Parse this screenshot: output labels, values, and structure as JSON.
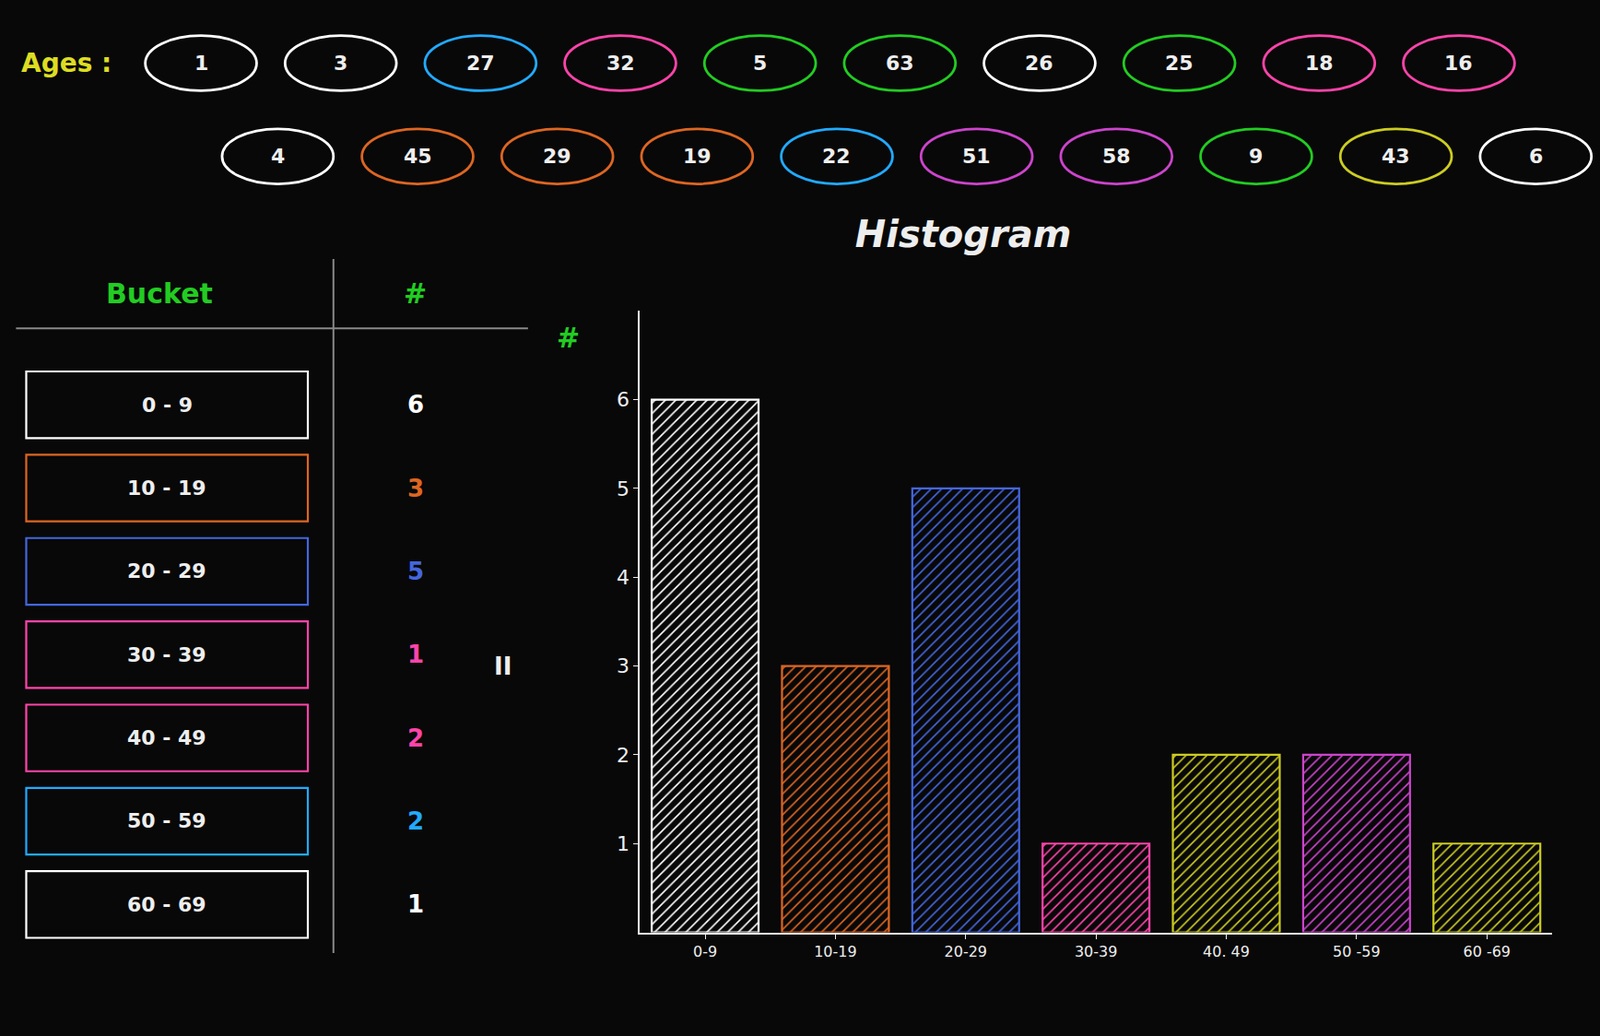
{
  "chart_data": {
    "type": "bar",
    "title": "Histogram",
    "categories": [
      "0-9",
      "10-19",
      "20-29",
      "30-39",
      "40. 49",
      "50 -59",
      "60 -69"
    ],
    "values": [
      6,
      3,
      5,
      1,
      2,
      2,
      1
    ],
    "colors": [
      "#ffffff",
      "#dd6622",
      "#4466dd",
      "#ff44aa",
      "#cccc22",
      "#cc44cc",
      "#cccc22"
    ],
    "ylim": [
      0,
      7
    ],
    "yticks": [
      1,
      2,
      3,
      4,
      5,
      6
    ],
    "annotations": [
      [
        {
          "text": "Ages :",
          "color": "#dddd22"
        }
      ],
      [
        {
          "text": "1",
          "color": "#ffffff"
        },
        {
          "text": "3",
          "color": "#ffffff"
        },
        {
          "text": "27",
          "color": "#22aaff"
        },
        {
          "text": "32",
          "color": "#ff44aa"
        },
        {
          "text": "5",
          "color": "#22cc22"
        },
        {
          "text": "63",
          "color": "#22cc22"
        },
        {
          "text": "26",
          "color": "#ffffff"
        },
        {
          "text": "25",
          "color": "#22cc22"
        },
        {
          "text": "18",
          "color": "#ff44aa"
        },
        {
          "text": "16",
          "color": "#ff44aa"
        }
      ],
      [
        {
          "text": "4",
          "color": "#ffffff"
        },
        {
          "text": "45",
          "color": "#dd6622"
        },
        {
          "text": "29",
          "color": "#dd6622"
        },
        {
          "text": "19",
          "color": "#dd6622"
        },
        {
          "text": "22",
          "color": "#22aaff"
        },
        {
          "text": "51",
          "color": "#cc44cc"
        },
        {
          "text": "58",
          "color": "#cc44cc"
        },
        {
          "text": "9",
          "color": "#22cc22"
        },
        {
          "text": "43",
          "color": "#cccc22"
        },
        {
          "text": "6",
          "color": "#ffffff"
        }
      ],
      [
        {
          "text": "Bucket",
          "color": "#22cc22"
        },
        {
          "text": "#",
          "color": "#22cc22"
        }
      ],
      [
        {
          "text": "0 - 9",
          "color": "#ffffff"
        },
        {
          "text": "10 - 19",
          "color": "#dd6622"
        },
        {
          "text": "20 - 29",
          "color": "#4466dd"
        },
        {
          "text": "30 - 39",
          "color": "#ff44aa"
        },
        {
          "text": "40 - 49",
          "color": "#ff44aa"
        },
        {
          "text": "50 - 59",
          "color": "#22aaff"
        },
        {
          "text": "60 - 69",
          "color": "#ffffff"
        }
      ],
      [
        {
          "text": "#",
          "color": "#22cc22"
        },
        {
          "text": "II"
        }
      ]
    ]
  }
}
